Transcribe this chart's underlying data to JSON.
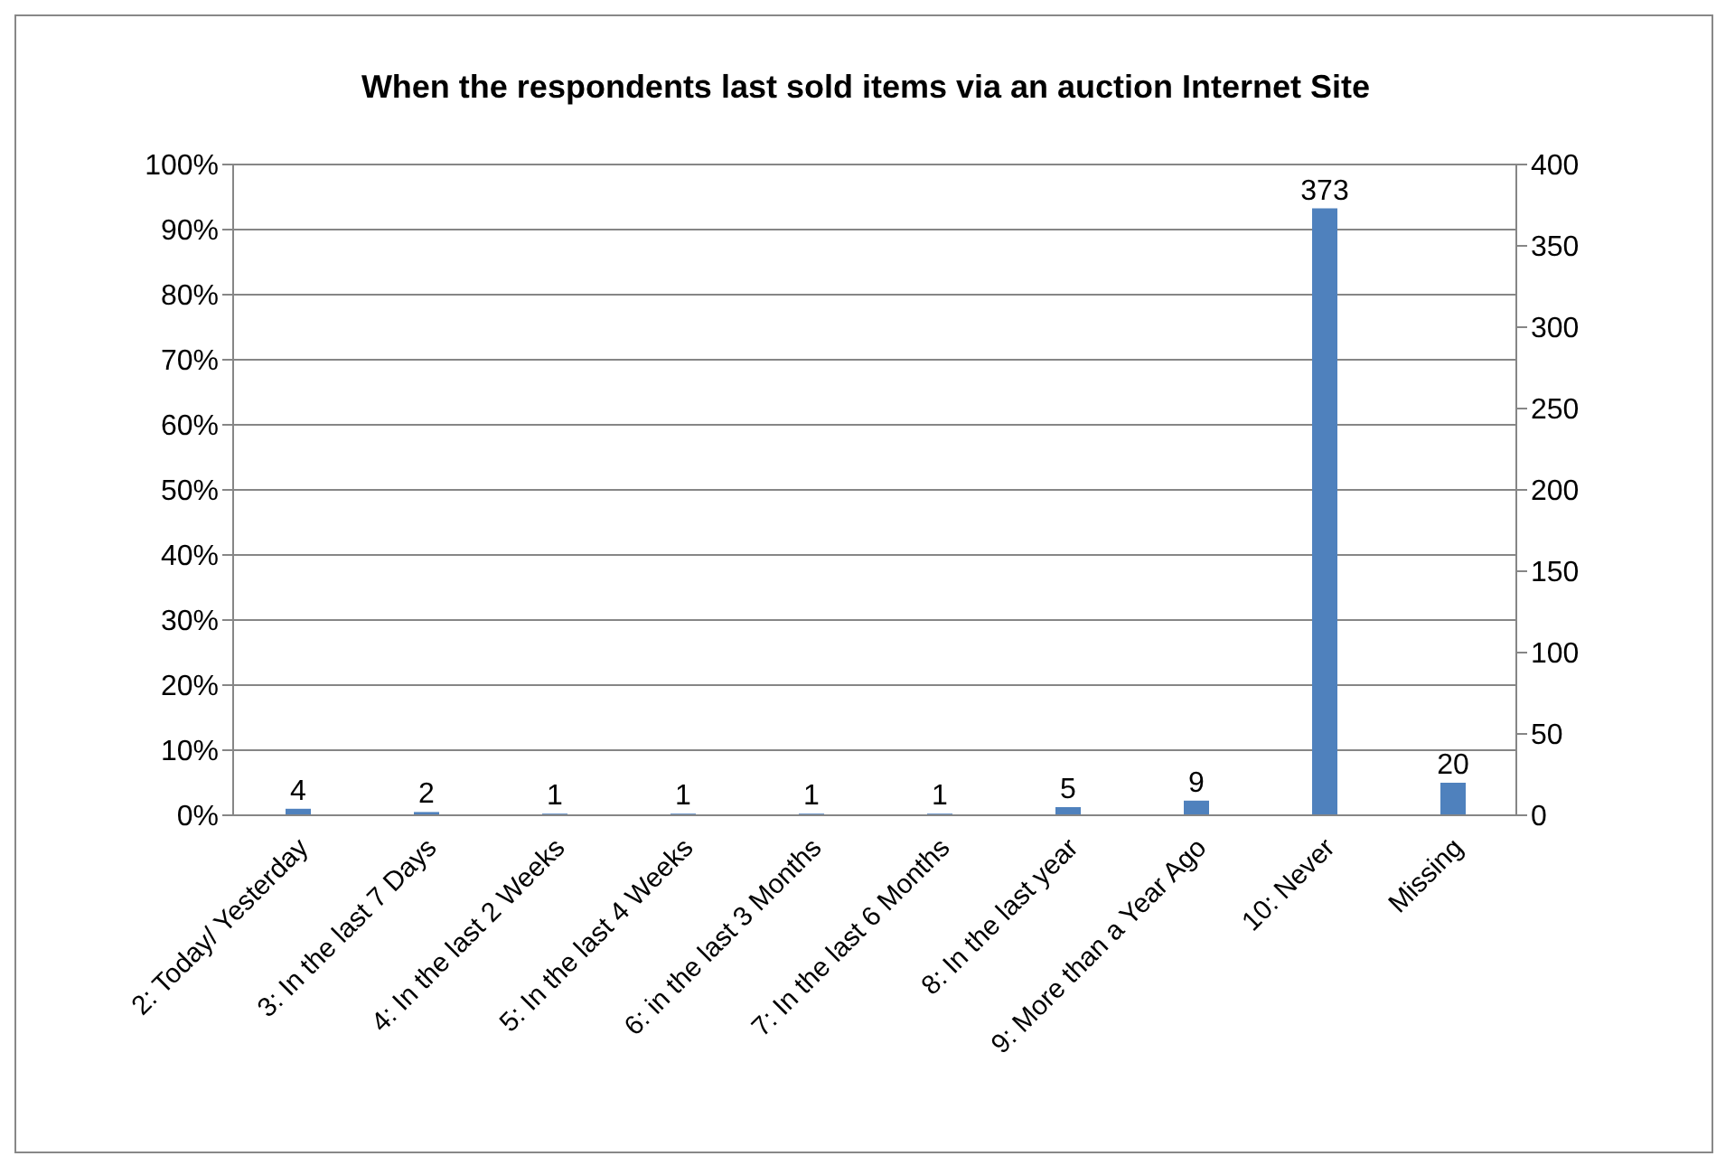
{
  "chart_data": {
    "type": "bar",
    "title": "When the respondents last sold items via an auction Internet Site",
    "categories": [
      "2: Today/ Yesterday",
      "3: In the last 7 Days",
      "4: In the last 2 Weeks",
      "5: In the last 4 Weeks",
      "6: in the last 3 Months",
      "7: In the last 6 Months",
      "8: In the last year",
      "9: More than a Year Ago",
      "10: Never",
      "Missing"
    ],
    "series": [
      {
        "color": "#4f81bd",
        "axis": "y2",
        "values": [
          4,
          2,
          1,
          1,
          1,
          1,
          5,
          9,
          373,
          20
        ]
      }
    ],
    "ylim": [
      0,
      100
    ],
    "yticks": [
      {
        "value": 0,
        "label": "0%"
      },
      {
        "value": 10,
        "label": "10%"
      },
      {
        "value": 20,
        "label": "20%"
      },
      {
        "value": 30,
        "label": "30%"
      },
      {
        "value": 40,
        "label": "40%"
      },
      {
        "value": 50,
        "label": "50%"
      },
      {
        "value": 60,
        "label": "60%"
      },
      {
        "value": 70,
        "label": "70%"
      },
      {
        "value": 80,
        "label": "80%"
      },
      {
        "value": 90,
        "label": "90%"
      },
      {
        "value": 100,
        "label": "100%"
      }
    ],
    "y2lim": [
      0,
      400
    ],
    "y2ticks": [
      0,
      50,
      100,
      150,
      200,
      250,
      300,
      350,
      400
    ],
    "grid": "y",
    "data_labels": true,
    "legend": false
  }
}
